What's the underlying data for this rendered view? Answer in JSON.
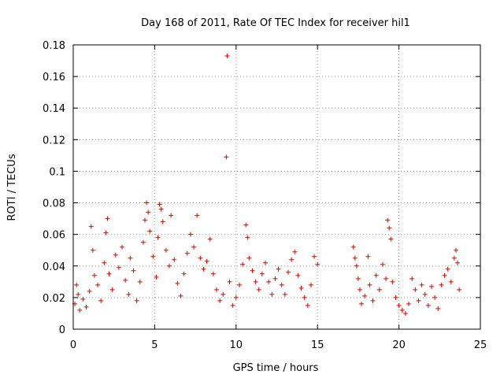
{
  "chart_data": {
    "type": "scatter",
    "title": "Day 168 of 2011, Rate Of TEC Index for receiver hil1",
    "xlabel": "GPS time / hours",
    "ylabel": "ROTI / TECUs",
    "xlim": [
      0,
      25
    ],
    "ylim": [
      0,
      0.18
    ],
    "xticks": [
      "0",
      "5",
      "10",
      "15",
      "20",
      "25"
    ],
    "yticks": [
      "0",
      "0.02",
      "0.04",
      "0.06",
      "0.08",
      "0.1",
      "0.12",
      "0.14",
      "0.16",
      "0.18"
    ],
    "grid": true,
    "marker": "+",
    "color": "#e00000",
    "series": [
      {
        "values": [
          [
            0.1,
            0.016
          ],
          [
            0.2,
            0.028
          ],
          [
            0.3,
            0.022
          ],
          [
            0.4,
            0.012
          ],
          [
            0.6,
            0.019
          ],
          [
            0.8,
            0.014
          ],
          [
            1.0,
            0.024
          ],
          [
            1.1,
            0.065
          ],
          [
            1.2,
            0.05
          ],
          [
            1.3,
            0.034
          ],
          [
            1.5,
            0.028
          ],
          [
            1.7,
            0.018
          ],
          [
            1.9,
            0.042
          ],
          [
            2.0,
            0.061
          ],
          [
            2.1,
            0.07
          ],
          [
            2.2,
            0.035
          ],
          [
            2.4,
            0.025
          ],
          [
            2.6,
            0.047
          ],
          [
            2.8,
            0.039
          ],
          [
            3.0,
            0.052
          ],
          [
            3.2,
            0.031
          ],
          [
            3.4,
            0.022
          ],
          [
            3.5,
            0.045
          ],
          [
            3.7,
            0.037
          ],
          [
            3.9,
            0.018
          ],
          [
            4.1,
            0.03
          ],
          [
            4.3,
            0.055
          ],
          [
            4.4,
            0.069
          ],
          [
            4.5,
            0.08
          ],
          [
            4.6,
            0.074
          ],
          [
            4.7,
            0.062
          ],
          [
            4.9,
            0.046
          ],
          [
            5.1,
            0.033
          ],
          [
            5.2,
            0.058
          ],
          [
            5.3,
            0.079
          ],
          [
            5.4,
            0.076
          ],
          [
            5.5,
            0.068
          ],
          [
            5.7,
            0.05
          ],
          [
            5.9,
            0.04
          ],
          [
            6.0,
            0.072
          ],
          [
            6.2,
            0.044
          ],
          [
            6.4,
            0.029
          ],
          [
            6.6,
            0.021
          ],
          [
            6.8,
            0.035
          ],
          [
            7.0,
            0.048
          ],
          [
            7.2,
            0.06
          ],
          [
            7.4,
            0.052
          ],
          [
            7.6,
            0.072
          ],
          [
            7.8,
            0.045
          ],
          [
            8.0,
            0.038
          ],
          [
            8.2,
            0.043
          ],
          [
            8.4,
            0.057
          ],
          [
            8.6,
            0.035
          ],
          [
            8.8,
            0.025
          ],
          [
            9.0,
            0.018
          ],
          [
            9.2,
            0.022
          ],
          [
            9.4,
            0.109
          ],
          [
            9.45,
            0.173
          ],
          [
            9.6,
            0.03
          ],
          [
            9.8,
            0.015
          ],
          [
            10.0,
            0.02
          ],
          [
            10.2,
            0.028
          ],
          [
            10.4,
            0.041
          ],
          [
            10.6,
            0.066
          ],
          [
            10.7,
            0.058
          ],
          [
            10.8,
            0.045
          ],
          [
            11.0,
            0.037
          ],
          [
            11.2,
            0.03
          ],
          [
            11.4,
            0.025
          ],
          [
            11.6,
            0.035
          ],
          [
            11.8,
            0.042
          ],
          [
            12.0,
            0.03
          ],
          [
            12.2,
            0.022
          ],
          [
            12.4,
            0.032
          ],
          [
            12.6,
            0.038
          ],
          [
            12.8,
            0.028
          ],
          [
            13.0,
            0.022
          ],
          [
            13.2,
            0.036
          ],
          [
            13.4,
            0.044
          ],
          [
            13.6,
            0.049
          ],
          [
            13.8,
            0.034
          ],
          [
            14.0,
            0.026
          ],
          [
            14.2,
            0.02
          ],
          [
            14.4,
            0.015
          ],
          [
            14.6,
            0.028
          ],
          [
            14.8,
            0.046
          ],
          [
            15.0,
            0.041
          ],
          [
            17.2,
            0.052
          ],
          [
            17.3,
            0.045
          ],
          [
            17.4,
            0.04
          ],
          [
            17.5,
            0.032
          ],
          [
            17.6,
            0.025
          ],
          [
            17.7,
            0.016
          ],
          [
            17.9,
            0.021
          ],
          [
            18.1,
            0.046
          ],
          [
            18.2,
            0.028
          ],
          [
            18.4,
            0.018
          ],
          [
            18.6,
            0.034
          ],
          [
            18.8,
            0.025
          ],
          [
            19.0,
            0.041
          ],
          [
            19.2,
            0.032
          ],
          [
            19.3,
            0.069
          ],
          [
            19.4,
            0.064
          ],
          [
            19.5,
            0.057
          ],
          [
            19.6,
            0.03
          ],
          [
            19.8,
            0.02
          ],
          [
            20.0,
            0.015
          ],
          [
            20.2,
            0.012
          ],
          [
            20.4,
            0.01
          ],
          [
            20.6,
            0.016
          ],
          [
            20.8,
            0.032
          ],
          [
            21.0,
            0.025
          ],
          [
            21.2,
            0.018
          ],
          [
            21.4,
            0.028
          ],
          [
            21.6,
            0.022
          ],
          [
            21.8,
            0.015
          ],
          [
            22.0,
            0.027
          ],
          [
            22.2,
            0.02
          ],
          [
            22.4,
            0.013
          ],
          [
            22.6,
            0.028
          ],
          [
            22.8,
            0.034
          ],
          [
            23.0,
            0.038
          ],
          [
            23.2,
            0.03
          ],
          [
            23.4,
            0.045
          ],
          [
            23.5,
            0.05
          ],
          [
            23.6,
            0.042
          ],
          [
            23.7,
            0.025
          ]
        ]
      }
    ]
  }
}
